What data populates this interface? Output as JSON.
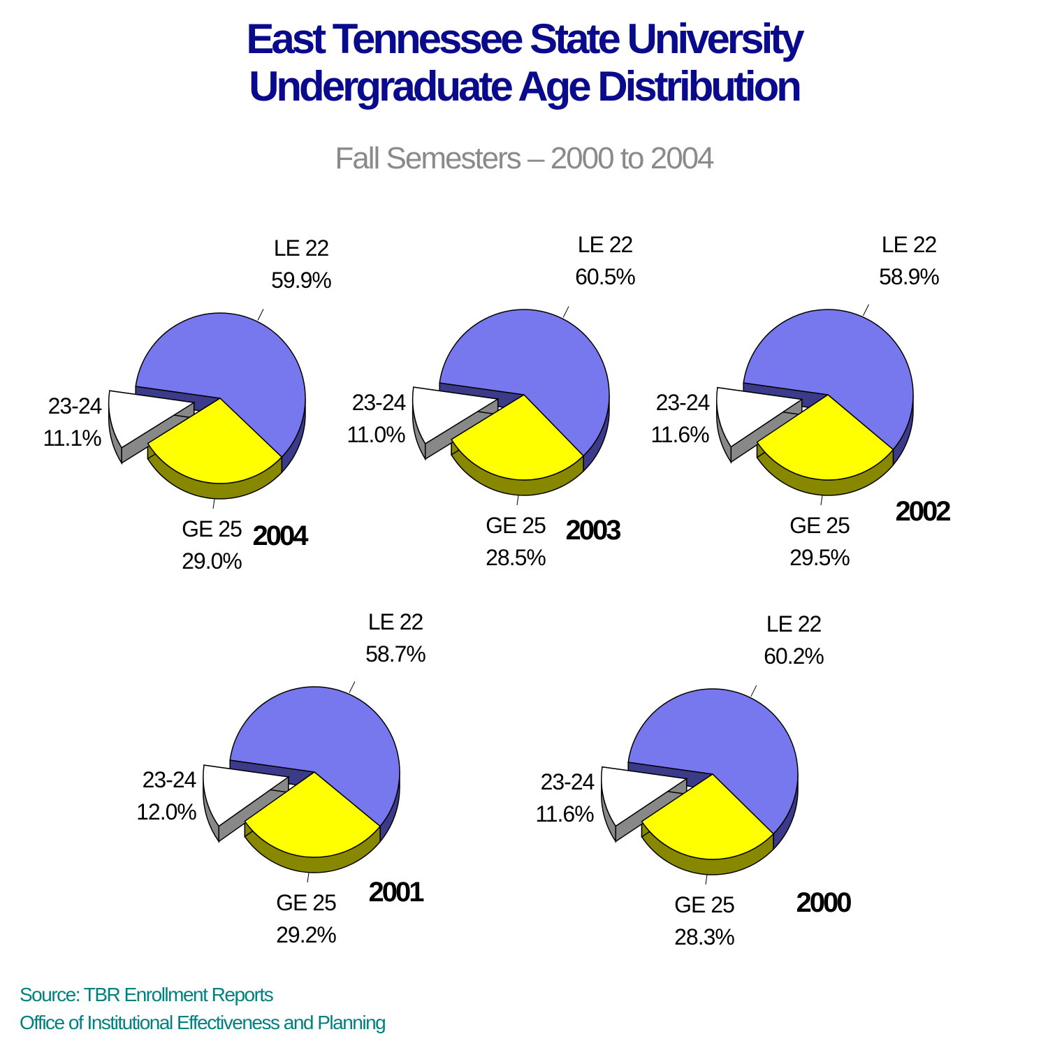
{
  "title_line1": "East Tennessee State University",
  "title_line2": "Undergraduate Age Distribution",
  "subtitle": "Fall Semesters – 2000 to 2004",
  "footer": {
    "source": "Source:  TBR Enrollment Reports",
    "office": "Office of Institutional Effectiveness and Planning"
  },
  "colors": {
    "title": "#0a0a8c",
    "subtitle": "#8a8a8a",
    "footer": "#008080",
    "le22": "#7777ee",
    "le22_side": "#3b3b8a",
    "ge25": "#ffff00",
    "ge25_side": "#888800",
    "age23_24": "#ffffff",
    "age23_24_side": "#888888"
  },
  "chart_data": [
    {
      "type": "pie",
      "title": "2004",
      "categories": [
        "LE 22",
        "GE 25",
        "23-24"
      ],
      "values": [
        59.9,
        29.0,
        11.1
      ],
      "value_labels": [
        "59.9%",
        "29.0%",
        "11.1%"
      ]
    },
    {
      "type": "pie",
      "title": "2003",
      "categories": [
        "LE 22",
        "GE 25",
        "23-24"
      ],
      "values": [
        60.5,
        28.5,
        11.0
      ],
      "value_labels": [
        "60.5%",
        "28.5%",
        "11.0%"
      ]
    },
    {
      "type": "pie",
      "title": "2002",
      "categories": [
        "LE 22",
        "GE 25",
        "23-24"
      ],
      "values": [
        58.9,
        29.5,
        11.6
      ],
      "value_labels": [
        "58.9%",
        "29.5%",
        "11.6%"
      ]
    },
    {
      "type": "pie",
      "title": "2001",
      "categories": [
        "LE 22",
        "GE 25",
        "23-24"
      ],
      "values": [
        58.7,
        29.2,
        12.0
      ],
      "value_labels": [
        "58.7%",
        "29.2%",
        "12.0%"
      ]
    },
    {
      "type": "pie",
      "title": "2000",
      "categories": [
        "LE 22",
        "GE 25",
        "23-24"
      ],
      "values": [
        60.2,
        28.3,
        11.6
      ],
      "value_labels": [
        "60.2%",
        "28.3%",
        "11.6%"
      ]
    }
  ]
}
